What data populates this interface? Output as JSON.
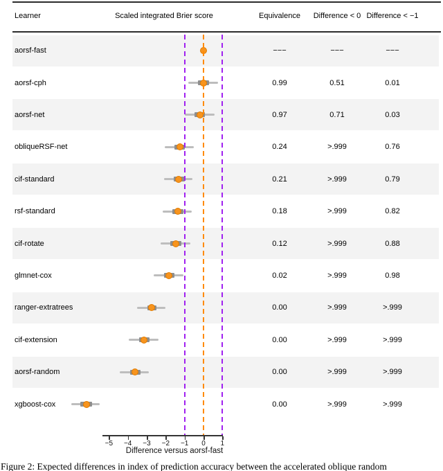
{
  "table_headers": {
    "learner": "Learner",
    "plot": "Scaled integrated Brier score",
    "equivalence": "Equivalence",
    "diff_lt_0": "Difference < 0",
    "diff_lt_neg1": "Difference < −1"
  },
  "chart_data": {
    "type": "forest",
    "xlabel": "Difference versus aorsf-fast",
    "xlim": [
      -5,
      1
    ],
    "xticks": [
      -5,
      -4,
      -3,
      -2,
      -1,
      0,
      1
    ],
    "xtick_labels": [
      "−5",
      "−4",
      "−3",
      "−2",
      "−1",
      "0",
      "1"
    ],
    "reference_lines": [
      {
        "x": -1,
        "color": "#A020F0",
        "style": "dashed"
      },
      {
        "x": 0,
        "color": "#FF8A00",
        "style": "dashed"
      },
      {
        "x": 1,
        "color": "#A020F0",
        "style": "dashed"
      }
    ],
    "rows": [
      {
        "learner": "aorsf-fast",
        "point": 0.0,
        "outer": null,
        "inner": null,
        "equivalence": "−−−",
        "diff_lt_0": "−−−",
        "diff_lt_neg1": "−−−"
      },
      {
        "learner": "aorsf-cph",
        "point": 0.0,
        "outer": [
          -0.8,
          0.78
        ],
        "inner": [
          -0.28,
          0.3
        ],
        "equivalence": "0.99",
        "diff_lt_0": "0.51",
        "diff_lt_neg1": "0.01"
      },
      {
        "learner": "aorsf-net",
        "point": -0.18,
        "outer": [
          -0.98,
          0.6
        ],
        "inner": [
          -0.48,
          0.08
        ],
        "equivalence": "0.97",
        "diff_lt_0": "0.71",
        "diff_lt_neg1": "0.03"
      },
      {
        "learner": "obliqueRSF-net",
        "point": -1.25,
        "outer": [
          -2.05,
          -0.52
        ],
        "inner": [
          -1.55,
          -0.97
        ],
        "equivalence": "0.24",
        "diff_lt_0": ">.999",
        "diff_lt_neg1": "0.76"
      },
      {
        "learner": "cif-standard",
        "point": -1.3,
        "outer": [
          -2.1,
          -0.57
        ],
        "inner": [
          -1.58,
          -1.0
        ],
        "equivalence": "0.21",
        "diff_lt_0": ">.999",
        "diff_lt_neg1": "0.79"
      },
      {
        "learner": "rsf-standard",
        "point": -1.36,
        "outer": [
          -2.15,
          -0.62
        ],
        "inner": [
          -1.66,
          -1.07
        ],
        "equivalence": "0.18",
        "diff_lt_0": ">.999",
        "diff_lt_neg1": "0.82"
      },
      {
        "learner": "cif-rotate",
        "point": -1.45,
        "outer": [
          -2.27,
          -0.7
        ],
        "inner": [
          -1.75,
          -1.16
        ],
        "equivalence": "0.12",
        "diff_lt_0": ">.999",
        "diff_lt_neg1": "0.88"
      },
      {
        "learner": "glmnet-cox",
        "point": -1.82,
        "outer": [
          -2.62,
          -1.06
        ],
        "inner": [
          -2.1,
          -1.55
        ],
        "equivalence": "0.02",
        "diff_lt_0": ">.999",
        "diff_lt_neg1": "0.98"
      },
      {
        "learner": "ranger-extratrees",
        "point": -2.73,
        "outer": [
          -3.53,
          -2.0
        ],
        "inner": [
          -2.97,
          -2.48
        ],
        "equivalence": "0.00",
        "diff_lt_0": ">.999",
        "diff_lt_neg1": ">.999"
      },
      {
        "learner": "cif-extension",
        "point": -3.13,
        "outer": [
          -3.94,
          -2.36
        ],
        "inner": [
          -3.41,
          -2.87
        ],
        "equivalence": "0.00",
        "diff_lt_0": ">.999",
        "diff_lt_neg1": ">.999"
      },
      {
        "learner": "aorsf-random",
        "point": -3.62,
        "outer": [
          -4.43,
          -2.88
        ],
        "inner": [
          -3.87,
          -3.33
        ],
        "equivalence": "0.00",
        "diff_lt_0": ">.999",
        "diff_lt_neg1": ">.999"
      },
      {
        "learner": "xgboost-cox",
        "point": -6.2,
        "outer": [
          -7.0,
          -5.5
        ],
        "inner": [
          -6.5,
          -5.9
        ],
        "equivalence": "0.00",
        "diff_lt_0": ">.999",
        "diff_lt_neg1": ">.999"
      }
    ]
  },
  "colors": {
    "point_fill": "#F7941E",
    "point_stroke": "#E07B00",
    "orange_line": "#FF8A00",
    "purple_line": "#A020F0",
    "outer_bar": "#BDBDBD",
    "inner_bar": "#8E8E8E",
    "band": "#F3F3F3",
    "rule": "#2b2b2b"
  },
  "caption": "Figure 2: Expected differences in index of prediction accuracy between the accelerated oblique random"
}
